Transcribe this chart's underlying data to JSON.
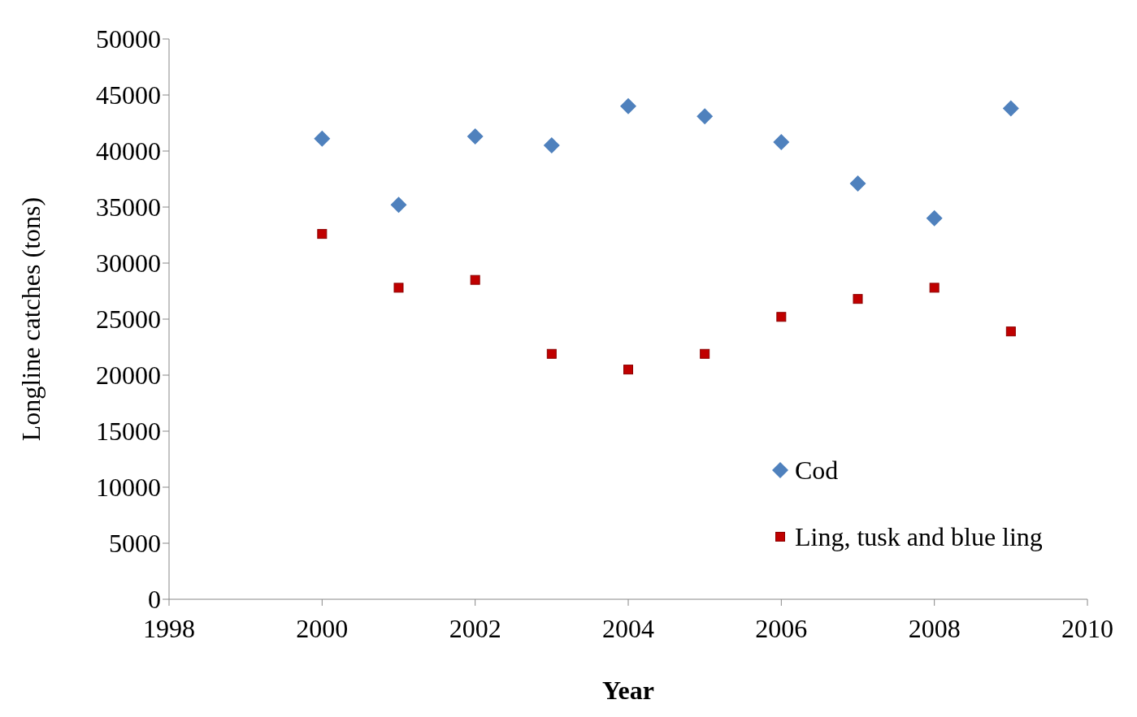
{
  "chart_data": {
    "type": "scatter",
    "xlabel": "Year",
    "ylabel": "Longline catches (tons)",
    "x": [
      2000,
      2001,
      2002,
      2003,
      2004,
      2005,
      2006,
      2007,
      2008,
      2009
    ],
    "series": [
      {
        "name": "Cod",
        "color": "#4f81bd",
        "marker": "diamond",
        "values": [
          41100,
          35200,
          41300,
          40500,
          44000,
          43100,
          40800,
          37100,
          34000,
          43800
        ]
      },
      {
        "name": "Ling, tusk and blue ling",
        "color": "#c00000",
        "marker": "square",
        "values": [
          32600,
          27800,
          28500,
          21900,
          20500,
          21900,
          25200,
          26800,
          27800,
          23900
        ]
      }
    ],
    "xlim": [
      1998,
      2010
    ],
    "xticks": [
      1998,
      2000,
      2002,
      2004,
      2006,
      2008,
      2010
    ],
    "ylim": [
      0,
      50000
    ],
    "yticks": [
      0,
      5000,
      10000,
      15000,
      20000,
      25000,
      30000,
      35000,
      40000,
      45000,
      50000
    ],
    "grid": false,
    "legend": "right"
  }
}
